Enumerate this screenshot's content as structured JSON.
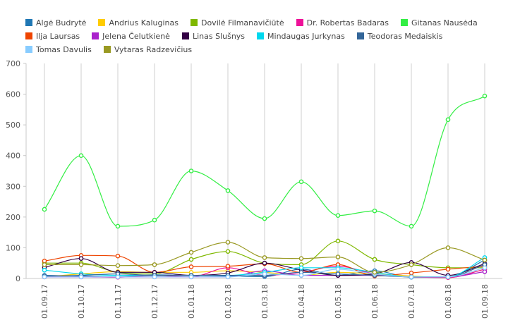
{
  "chart_data": {
    "type": "line",
    "title": "",
    "xlabel": "",
    "ylabel": "",
    "ylim": [
      0,
      700
    ],
    "yticks": [
      0,
      100,
      200,
      300,
      400,
      500,
      600,
      700
    ],
    "grid": "vertical",
    "legend_position": "top",
    "categories": [
      "01.09.17",
      "01.10.17",
      "01.11.17",
      "01.12.17",
      "01.01.18",
      "01.02.18",
      "01.03.18",
      "01.04.18",
      "01.05.18",
      "01.06.18",
      "01.07.18",
      "01.08.18",
      "01.09.18"
    ],
    "series": [
      {
        "name": "Algė Budrytė",
        "color": "#1f77b4",
        "values": [
          10,
          8,
          5,
          12,
          10,
          8,
          6,
          30,
          10,
          25,
          4,
          5,
          60
        ]
      },
      {
        "name": "Andrius Kaluginas",
        "color": "#ffcc00",
        "values": [
          5,
          15,
          22,
          20,
          20,
          25,
          20,
          10,
          20,
          15,
          8,
          3,
          30
        ]
      },
      {
        "name": "Dovilė Filmanavičiūtė",
        "color": "#7fb800",
        "values": [
          50,
          50,
          20,
          15,
          62,
          88,
          50,
          45,
          122,
          62,
          45,
          35,
          35
        ]
      },
      {
        "name": "Dr. Robertas Badaras",
        "color": "#ee1199",
        "values": [
          5,
          5,
          4,
          10,
          5,
          35,
          10,
          20,
          40,
          15,
          5,
          3,
          30
        ]
      },
      {
        "name": "Gitanas Nausėda",
        "color": "#33ee44",
        "values": [
          225,
          400,
          170,
          190,
          350,
          286,
          195,
          315,
          205,
          220,
          170,
          517,
          594
        ]
      },
      {
        "name": "Ilja Laursas",
        "color": "#ee4400",
        "values": [
          57,
          75,
          73,
          20,
          38,
          40,
          48,
          20,
          45,
          8,
          18,
          30,
          40
        ]
      },
      {
        "name": "Jelena Čelutkienė",
        "color": "#aa22cc",
        "values": [
          5,
          5,
          5,
          5,
          5,
          5,
          25,
          10,
          10,
          10,
          5,
          5,
          22
        ]
      },
      {
        "name": "Linas Slušnys",
        "color": "#330044",
        "values": [
          36,
          65,
          20,
          20,
          10,
          18,
          50,
          28,
          10,
          15,
          52,
          10,
          48
        ]
      },
      {
        "name": "Mindaugas Jurkynas",
        "color": "#00d8ee",
        "values": [
          27,
          15,
          10,
          10,
          10,
          10,
          20,
          35,
          35,
          20,
          5,
          5,
          68
        ]
      },
      {
        "name": "Teodoras Medaiskis",
        "color": "#336699",
        "values": [
          8,
          10,
          15,
          10,
          10,
          10,
          10,
          20,
          15,
          10,
          5,
          5,
          45
        ]
      },
      {
        "name": "Tomas Davulis",
        "color": "#88ccff",
        "values": [
          5,
          5,
          5,
          5,
          5,
          5,
          15,
          10,
          30,
          15,
          5,
          5,
          35
        ]
      },
      {
        "name": "Vytaras Radzevičius",
        "color": "#999922",
        "values": [
          45,
          45,
          42,
          45,
          85,
          118,
          68,
          65,
          70,
          20,
          45,
          100,
          60
        ]
      }
    ]
  }
}
